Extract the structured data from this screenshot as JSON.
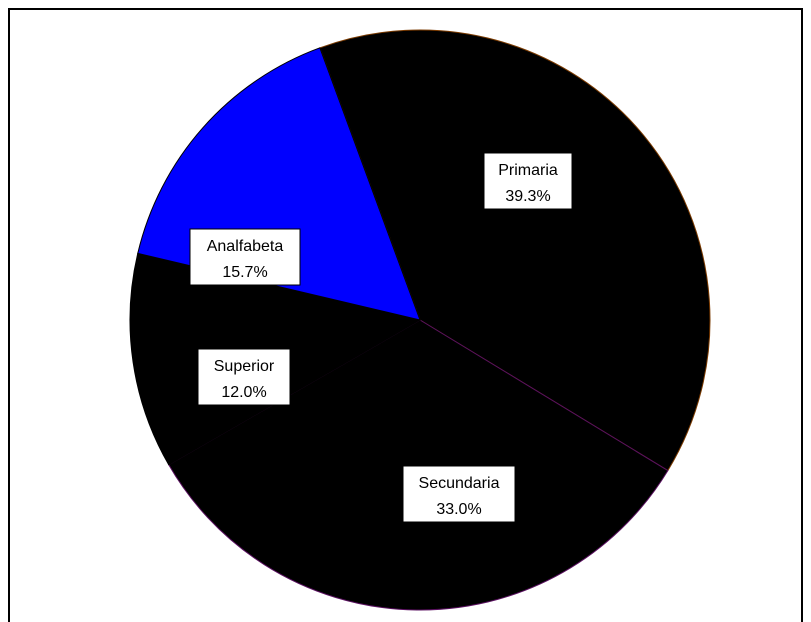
{
  "chart_data": {
    "type": "pie",
    "title": "",
    "slices": [
      {
        "label": "Primaria",
        "value": 39.3,
        "value_text": "39.3%",
        "color": "#000000",
        "edge": "#7a3a00"
      },
      {
        "label": "Secundaria",
        "value": 33.0,
        "value_text": "33.0%",
        "color": "#000000",
        "edge": "#5a1060"
      },
      {
        "label": "Superior",
        "value": 12.0,
        "value_text": "12.0%",
        "color": "#000000",
        "edge": "#000000"
      },
      {
        "label": "Analfabeta",
        "value": 15.7,
        "value_text": "15.7%",
        "color": "#0000ff",
        "edge": "#000000"
      }
    ],
    "start_angle_deg": -110.2,
    "direction": "clockwise",
    "legend": "none"
  }
}
